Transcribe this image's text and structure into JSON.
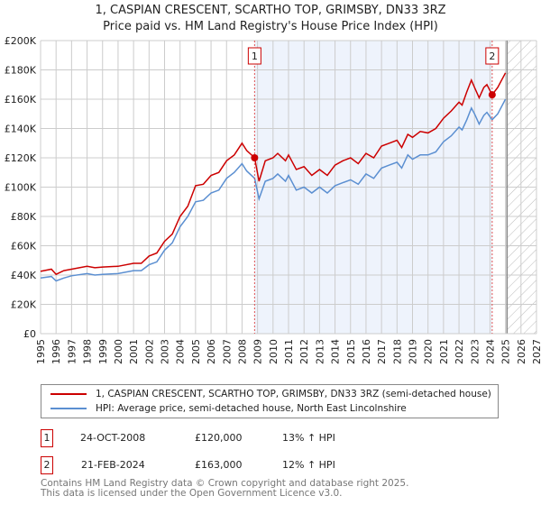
{
  "title": "1, CASPIAN CRESCENT, SCARTHO TOP, GRIMSBY, DN33 3RZ",
  "subtitle": "Price paid vs. HM Land Registry's House Price Index (HPI)",
  "chart_data": {
    "type": "line",
    "title": "1, CASPIAN CRESCENT, SCARTHO TOP, GRIMSBY, DN33 3RZ",
    "xlim": [
      1995,
      2027
    ],
    "ylim": [
      0,
      200000
    ],
    "x_ticks": [
      "1995",
      "1996",
      "1997",
      "1998",
      "1999",
      "2000",
      "2001",
      "2002",
      "2003",
      "2004",
      "2005",
      "2006",
      "2007",
      "2008",
      "2009",
      "2010",
      "2011",
      "2012",
      "2013",
      "2014",
      "2015",
      "2016",
      "2017",
      "2018",
      "2019",
      "2020",
      "2021",
      "2022",
      "2023",
      "2024",
      "2025",
      "2026",
      "2027"
    ],
    "y_ticks": [
      {
        "v": 0,
        "label": "£0"
      },
      {
        "v": 20000,
        "label": "£20K"
      },
      {
        "v": 40000,
        "label": "£40K"
      },
      {
        "v": 60000,
        "label": "£60K"
      },
      {
        "v": 80000,
        "label": "£80K"
      },
      {
        "v": 100000,
        "label": "£100K"
      },
      {
        "v": 120000,
        "label": "£120K"
      },
      {
        "v": 140000,
        "label": "£140K"
      },
      {
        "v": 160000,
        "label": "£160K"
      },
      {
        "v": 180000,
        "label": "£180K"
      },
      {
        "v": 200000,
        "label": "£200K"
      }
    ],
    "grid": true,
    "shaded_range": [
      2008.81,
      2024.14
    ],
    "forecast_hatch_from": 2025.1,
    "series": [
      {
        "name": "1, CASPIAN CRESCENT, SCARTHO TOP, GRIMSBY, DN33 3RZ (semi-detached house)",
        "color": "#cc0000",
        "x": [
          1995,
          1995.7,
          1996,
          1996.5,
          1997,
          1998,
          1998.5,
          1999,
          2000,
          2001,
          2001.5,
          2002,
          2002.5,
          2003,
          2003.5,
          2004,
          2004.5,
          2005,
          2005.5,
          2006,
          2006.5,
          2007,
          2007.5,
          2008,
          2008.3,
          2008.81,
          2009.1,
          2009.5,
          2010,
          2010.3,
          2010.8,
          2011,
          2011.5,
          2012,
          2012.5,
          2013,
          2013.5,
          2014,
          2014.5,
          2015,
          2015.5,
          2016,
          2016.5,
          2017,
          2017.5,
          2018,
          2018.3,
          2018.7,
          2019,
          2019.5,
          2020,
          2020.5,
          2021,
          2021.5,
          2022,
          2022.2,
          2022.5,
          2022.8,
          2023,
          2023.3,
          2023.6,
          2023.8,
          2024.14,
          2024.5,
          2025
        ],
        "y": [
          42500,
          44000,
          40500,
          43000,
          44000,
          46000,
          45000,
          45500,
          46000,
          48000,
          48000,
          53000,
          55000,
          63000,
          68000,
          80000,
          87000,
          101000,
          102000,
          108000,
          110000,
          118000,
          122000,
          130000,
          125000,
          120000,
          104000,
          118000,
          120000,
          123000,
          118000,
          122000,
          112000,
          114000,
          108000,
          112000,
          108000,
          115000,
          118000,
          120000,
          116000,
          123000,
          120000,
          128000,
          130000,
          132000,
          127000,
          136000,
          134000,
          138000,
          137000,
          140000,
          147000,
          152000,
          158000,
          156000,
          165000,
          173000,
          168000,
          161000,
          168000,
          170000,
          163000,
          168000,
          178000
        ]
      },
      {
        "name": "HPI: Average price, semi-detached house, North East Lincolnshire",
        "color": "#5b8fd1",
        "x": [
          1995,
          1995.7,
          1996,
          1996.5,
          1997,
          1998,
          1998.5,
          1999,
          2000,
          2001,
          2001.5,
          2002,
          2002.5,
          2003,
          2003.5,
          2004,
          2004.5,
          2005,
          2005.5,
          2006,
          2006.5,
          2007,
          2007.5,
          2008,
          2008.3,
          2008.81,
          2009.1,
          2009.5,
          2010,
          2010.3,
          2010.8,
          2011,
          2011.5,
          2012,
          2012.5,
          2013,
          2013.5,
          2014,
          2014.5,
          2015,
          2015.5,
          2016,
          2016.5,
          2017,
          2017.5,
          2018,
          2018.3,
          2018.7,
          2019,
          2019.5,
          2020,
          2020.5,
          2021,
          2021.5,
          2022,
          2022.2,
          2022.5,
          2022.8,
          2023,
          2023.3,
          2023.6,
          2023.8,
          2024.14,
          2024.5,
          2025
        ],
        "y": [
          38000,
          39000,
          36000,
          38000,
          39500,
          41000,
          40000,
          40500,
          41000,
          43000,
          43000,
          47000,
          49000,
          57000,
          62000,
          73000,
          80000,
          90000,
          91000,
          96000,
          98000,
          106000,
          110000,
          116000,
          111000,
          106000,
          92000,
          104000,
          106000,
          109000,
          104000,
          108000,
          98000,
          100000,
          96000,
          100000,
          96000,
          101000,
          103000,
          105000,
          102000,
          109000,
          106000,
          113000,
          115000,
          117000,
          113000,
          122000,
          119000,
          122000,
          122000,
          124000,
          131000,
          135000,
          141000,
          139000,
          146000,
          154000,
          150000,
          143000,
          149000,
          151000,
          146000,
          150000,
          160000
        ]
      }
    ],
    "markers": [
      {
        "label": "1",
        "x": 2008.81,
        "y": 120000
      },
      {
        "label": "2",
        "x": 2024.14,
        "y": 163000
      }
    ]
  },
  "legend": {
    "property": "1, CASPIAN CRESCENT, SCARTHO TOP, GRIMSBY, DN33 3RZ (semi-detached house)",
    "hpi": "HPI: Average price, semi-detached house, North East Lincolnshire"
  },
  "sales": [
    {
      "num": "1",
      "date": "24-OCT-2008",
      "price": "£120,000",
      "delta": "13% ↑ HPI"
    },
    {
      "num": "2",
      "date": "21-FEB-2024",
      "price": "£163,000",
      "delta": "12% ↑ HPI"
    }
  ],
  "footer": {
    "line1": "Contains HM Land Registry data © Crown copyright and database right 2025.",
    "line2": "This data is licensed under the Open Government Licence v3.0."
  }
}
